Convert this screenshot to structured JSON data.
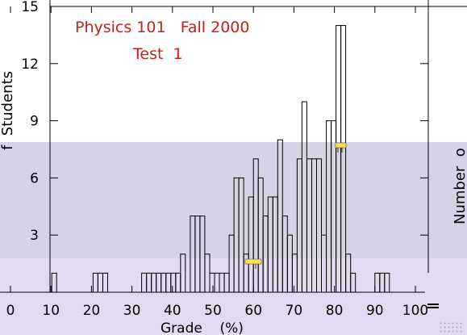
{
  "colors": {
    "title": "#cc1c1c",
    "axis": "#000000",
    "bar_stroke": "#000000",
    "band_upper": "#d8d2e6",
    "band_lower": "#e4d9f2"
  },
  "icons": [
    "pin-icon",
    "resize-grip-icon"
  ],
  "chart_data": {
    "type": "bar",
    "title": "Physics 101   Fall 2000",
    "subtitle": "Test  1",
    "xlabel": "Grade    (%)",
    "ylabel": "Number of Students",
    "ylabel_visible_top": "f  Students",
    "ylabel_visible_right": "Number  o",
    "xlim": [
      0,
      100
    ],
    "ylim": [
      0,
      15
    ],
    "xticks": [
      "0",
      "10",
      "20",
      "30",
      "40",
      "50",
      "60",
      "70",
      "80",
      "90",
      "100"
    ],
    "yticks": [
      "3",
      "6",
      "9",
      "12",
      "15"
    ],
    "grid": false,
    "legend": "none",
    "bin_width": 1.2,
    "bins": [
      {
        "x": 10.2,
        "y": 1
      },
      {
        "x": 20.4,
        "y": 1
      },
      {
        "x": 21.6,
        "y": 1
      },
      {
        "x": 22.8,
        "y": 1
      },
      {
        "x": 32.4,
        "y": 1
      },
      {
        "x": 33.6,
        "y": 1
      },
      {
        "x": 34.8,
        "y": 1
      },
      {
        "x": 36.0,
        "y": 1
      },
      {
        "x": 37.2,
        "y": 1
      },
      {
        "x": 38.4,
        "y": 1
      },
      {
        "x": 39.6,
        "y": 1
      },
      {
        "x": 40.8,
        "y": 1
      },
      {
        "x": 42.0,
        "y": 2
      },
      {
        "x": 44.4,
        "y": 4
      },
      {
        "x": 45.6,
        "y": 4
      },
      {
        "x": 46.8,
        "y": 4
      },
      {
        "x": 48.0,
        "y": 2
      },
      {
        "x": 49.2,
        "y": 1
      },
      {
        "x": 50.4,
        "y": 1
      },
      {
        "x": 51.6,
        "y": 1
      },
      {
        "x": 52.8,
        "y": 1
      },
      {
        "x": 54.0,
        "y": 3
      },
      {
        "x": 55.2,
        "y": 6
      },
      {
        "x": 56.4,
        "y": 6
      },
      {
        "x": 57.6,
        "y": 2
      },
      {
        "x": 58.8,
        "y": 5
      },
      {
        "x": 60.0,
        "y": 7
      },
      {
        "x": 61.2,
        "y": 6
      },
      {
        "x": 62.4,
        "y": 4
      },
      {
        "x": 63.6,
        "y": 5
      },
      {
        "x": 64.8,
        "y": 5
      },
      {
        "x": 66.0,
        "y": 8
      },
      {
        "x": 67.2,
        "y": 4
      },
      {
        "x": 68.4,
        "y": 3
      },
      {
        "x": 69.6,
        "y": 2
      },
      {
        "x": 70.8,
        "y": 7
      },
      {
        "x": 72.0,
        "y": 10
      },
      {
        "x": 73.2,
        "y": 7
      },
      {
        "x": 74.4,
        "y": 7
      },
      {
        "x": 75.6,
        "y": 7
      },
      {
        "x": 76.8,
        "y": 3
      },
      {
        "x": 78.0,
        "y": 9
      },
      {
        "x": 79.2,
        "y": 9
      },
      {
        "x": 80.4,
        "y": 14
      },
      {
        "x": 81.6,
        "y": 14
      },
      {
        "x": 82.8,
        "y": 2
      },
      {
        "x": 84.0,
        "y": 1
      },
      {
        "x": 90.0,
        "y": 1
      },
      {
        "x": 91.2,
        "y": 1
      },
      {
        "x": 92.4,
        "y": 1
      }
    ]
  }
}
